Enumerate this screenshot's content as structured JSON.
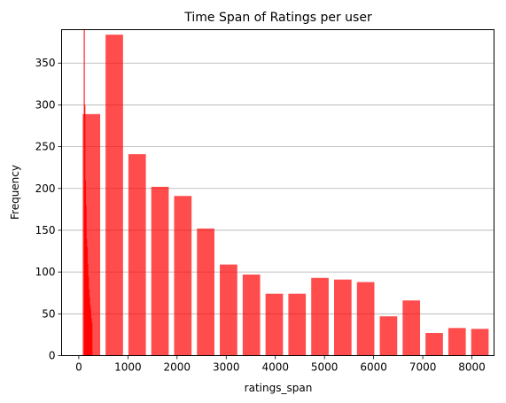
{
  "chart_data": {
    "type": "bar",
    "title": "Time Span of Ratings per user",
    "xlabel": "ratings_span",
    "ylabel": "Frequency",
    "xlim": [
      -350,
      8450
    ],
    "ylim": [
      0,
      390
    ],
    "x_ticks": [
      0,
      1000,
      2000,
      3000,
      4000,
      5000,
      6000,
      7000,
      8000
    ],
    "y_ticks": [
      0,
      50,
      100,
      150,
      200,
      250,
      300,
      350
    ],
    "grid": "horizontal",
    "bar_color": "#ff0000",
    "bar_alpha": 0.7,
    "bins": [
      {
        "x0": 80,
        "x1": 435,
        "value": 289
      },
      {
        "x0": 545,
        "x1": 900,
        "value": 384
      },
      {
        "x0": 1010,
        "x1": 1365,
        "value": 241
      },
      {
        "x0": 1475,
        "x1": 1830,
        "value": 202
      },
      {
        "x0": 1940,
        "x1": 2295,
        "value": 191
      },
      {
        "x0": 2405,
        "x1": 2760,
        "value": 152
      },
      {
        "x0": 2870,
        "x1": 3225,
        "value": 109
      },
      {
        "x0": 3335,
        "x1": 3690,
        "value": 97
      },
      {
        "x0": 3800,
        "x1": 4155,
        "value": 74
      },
      {
        "x0": 4265,
        "x1": 4620,
        "value": 74
      },
      {
        "x0": 4730,
        "x1": 5085,
        "value": 93
      },
      {
        "x0": 5195,
        "x1": 5550,
        "value": 91
      },
      {
        "x0": 5660,
        "x1": 6015,
        "value": 88
      },
      {
        "x0": 6125,
        "x1": 6480,
        "value": 47
      },
      {
        "x0": 6590,
        "x1": 6945,
        "value": 66
      },
      {
        "x0": 7055,
        "x1": 7410,
        "value": 27
      },
      {
        "x0": 7520,
        "x1": 7875,
        "value": 33
      },
      {
        "x0": 7985,
        "x1": 8340,
        "value": 32
      }
    ],
    "fine_spikes": [
      {
        "x": 110,
        "value": 400
      },
      {
        "x": 122,
        "value": 300
      },
      {
        "x": 134,
        "value": 210
      },
      {
        "x": 146,
        "value": 180
      },
      {
        "x": 158,
        "value": 140
      },
      {
        "x": 170,
        "value": 130
      },
      {
        "x": 182,
        "value": 110
      },
      {
        "x": 194,
        "value": 95
      },
      {
        "x": 206,
        "value": 80
      },
      {
        "x": 218,
        "value": 70
      },
      {
        "x": 230,
        "value": 60
      },
      {
        "x": 242,
        "value": 55
      },
      {
        "x": 254,
        "value": 45
      },
      {
        "x": 266,
        "value": 40
      }
    ]
  }
}
